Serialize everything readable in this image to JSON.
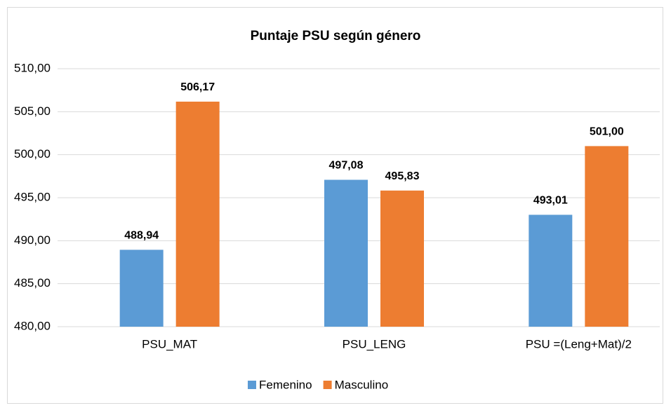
{
  "chart_data": {
    "type": "bar",
    "title": "Puntaje PSU según género",
    "categories": [
      "PSU_MAT",
      "PSU_LENG",
      "PSU =(Leng+Mat)/2"
    ],
    "series": [
      {
        "name": "Femenino",
        "color": "#5b9bd5",
        "values": [
          488.94,
          497.08,
          493.01
        ],
        "value_labels": [
          "488,94",
          "497,08",
          "493,01"
        ]
      },
      {
        "name": "Masculino",
        "color": "#ed7d31",
        "values": [
          506.17,
          495.83,
          501.0
        ],
        "value_labels": [
          "506,17",
          "495,83",
          "501,00"
        ]
      }
    ],
    "ylim": [
      480,
      510
    ],
    "yticks": [
      {
        "value": 480,
        "label": "480,00"
      },
      {
        "value": 485,
        "label": "485,00"
      },
      {
        "value": 490,
        "label": "490,00"
      },
      {
        "value": 495,
        "label": "495,00"
      },
      {
        "value": 500,
        "label": "500,00"
      },
      {
        "value": 505,
        "label": "505,00"
      },
      {
        "value": 510,
        "label": "510,00"
      }
    ],
    "grid": true,
    "legend": "bottom"
  }
}
